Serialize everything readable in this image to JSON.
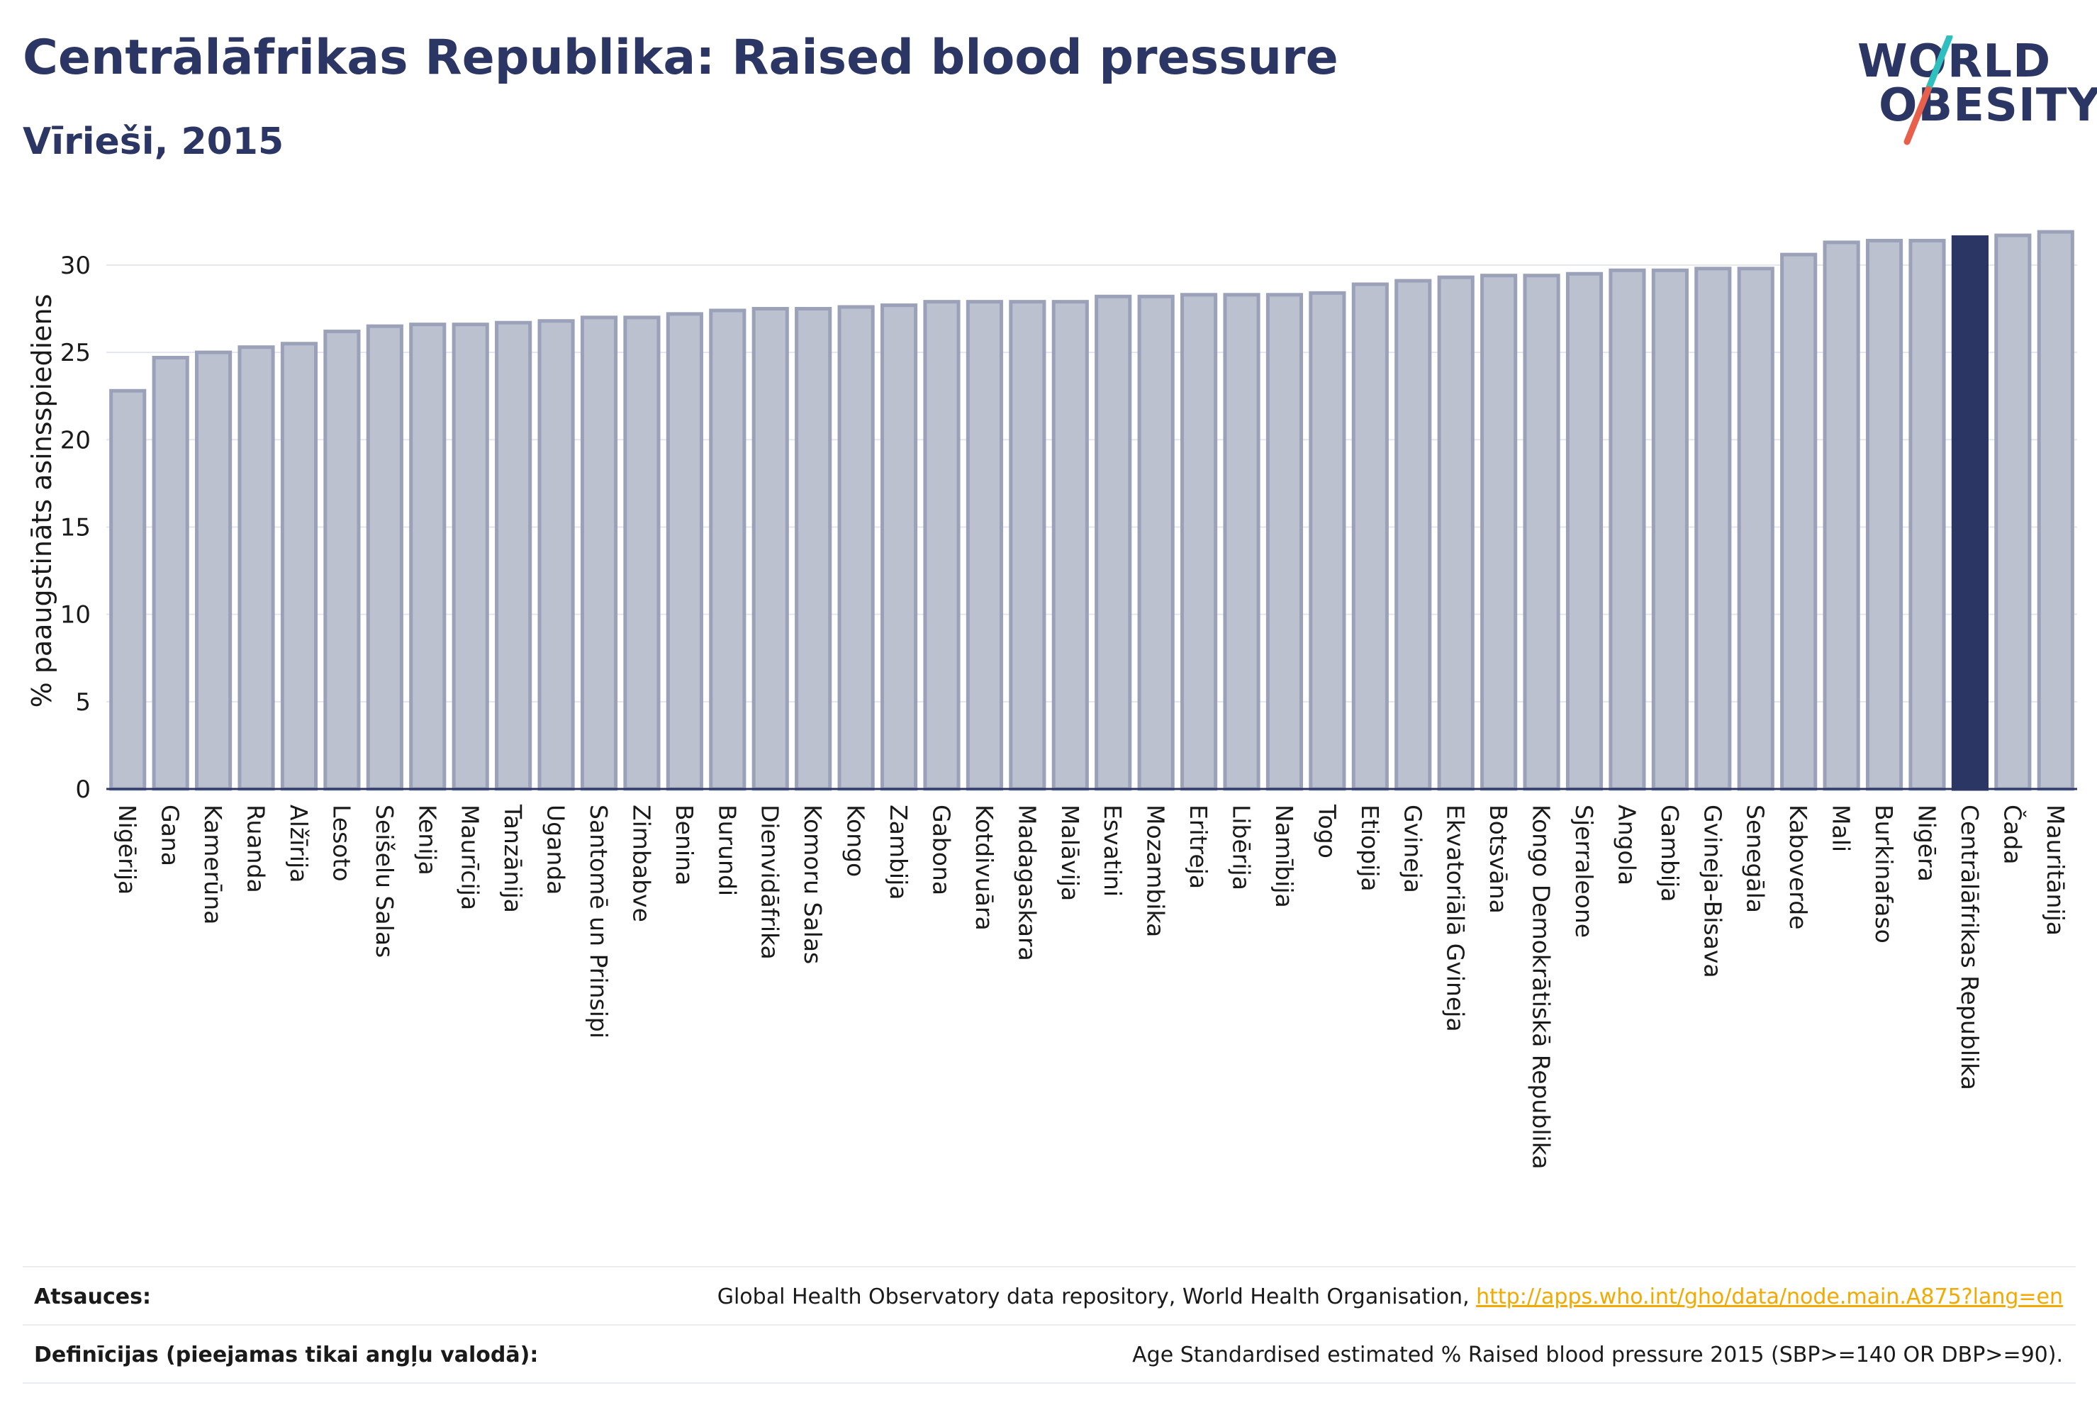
{
  "header": {
    "title": "Centrālāfrikas Republika: Raised blood pressure",
    "subtitle": "Vīrieši, 2015"
  },
  "logo": {
    "line1": "WORLD",
    "line2": "OBESITY",
    "slash_colors": [
      "#2fbfbf",
      "#e8604c"
    ]
  },
  "colors": {
    "bar": "#bcc1d0",
    "bar_edge": "#9aa1b8",
    "highlight": "#2b3664",
    "grid": "#e3e6ee",
    "text": "#1a1a1a",
    "title": "#2b3664"
  },
  "chart_data": {
    "type": "bar",
    "ylabel": "% paaugstināts asinsspiediens",
    "ylim": [
      0,
      33
    ],
    "yticks": [
      0,
      5,
      10,
      15,
      20,
      25,
      30
    ],
    "grid": true,
    "highlight": "Centrālāfrikas Republika",
    "categories": [
      "Nigērija",
      "Gana",
      "Kamerūna",
      "Ruanda",
      "Alžīrija",
      "Lesoto",
      "Seišelu Salas",
      "Kenija",
      "Maurīcija",
      "Tanzānija",
      "Uganda",
      "Santomē un Prinsipi",
      "Zimbabve",
      "Benina",
      "Burundi",
      "Dienvidāfrika",
      "Komoru Salas",
      "Kongo",
      "Zambija",
      "Gabona",
      "Kotdivuāra",
      "Madagaskara",
      "Malāvija",
      "Esvatini",
      "Mozambika",
      "Eritreja",
      "Libērija",
      "Namībija",
      "Togo",
      "Etiopija",
      "Gvineja",
      "Ekvatoriālā Gvineja",
      "Botsvāna",
      "Kongo Demokrātiskā Republika",
      "Sjerraleone",
      "Angola",
      "Gambija",
      "Gvineja-Bisava",
      "Senegāla",
      "Kaboverde",
      "Mali",
      "Burkinafaso",
      "Nigēra",
      "Centrālāfrikas Republika",
      "Čada",
      "Mauritānija"
    ],
    "values": [
      22.8,
      24.7,
      25.0,
      25.3,
      25.5,
      26.2,
      26.5,
      26.6,
      26.6,
      26.7,
      26.8,
      27.0,
      27.0,
      27.2,
      27.4,
      27.5,
      27.5,
      27.6,
      27.7,
      27.9,
      27.9,
      27.9,
      27.9,
      28.2,
      28.2,
      28.3,
      28.3,
      28.3,
      28.4,
      28.9,
      29.1,
      29.3,
      29.4,
      29.4,
      29.5,
      29.7,
      29.7,
      29.8,
      29.8,
      30.6,
      31.3,
      31.4,
      31.4,
      31.6,
      31.7,
      31.9
    ]
  },
  "footer": {
    "sources_label": "Atsauces:",
    "sources_text": "Global Health Observatory data repository, World Health Organisation, ",
    "sources_link": "http://apps.who.int/gho/data/node.main.A875?lang=en",
    "definitions_label": "Definīcijas (pieejamas tikai angļu valodā):",
    "definitions_text": "Age Standardised estimated % Raised blood pressure 2015 (SBP>=140 OR DBP>=90)."
  }
}
